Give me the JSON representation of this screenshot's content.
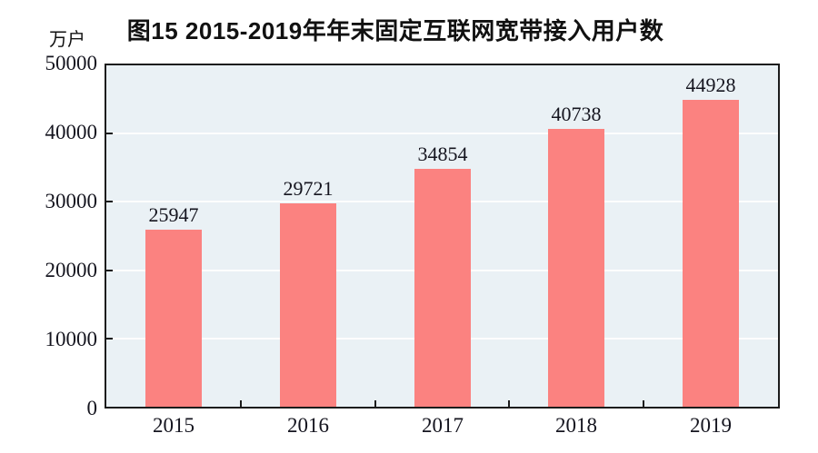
{
  "chart_data": {
    "type": "bar",
    "title": "图15 2015-2019年年末固定互联网宽带接入用户数",
    "ylabel": "万户",
    "xlabel": "",
    "categories": [
      "2015",
      "2016",
      "2017",
      "2018",
      "2019"
    ],
    "values": [
      25947,
      29721,
      34854,
      40738,
      44928
    ],
    "ylim": [
      0,
      50000
    ],
    "ytick_step": 10000,
    "ytick_labels": [
      "0",
      "10000",
      "20000",
      "30000",
      "40000",
      "50000"
    ],
    "show_value_labels": true,
    "grid": true,
    "legend_position": "none",
    "colors": {
      "bar": "#fb8280",
      "plot_background": "#eaf1f5",
      "gridline": "#fdfdfd",
      "axis": "#1c1c1c",
      "text": "#15151f",
      "page_background": "#ffffff"
    }
  }
}
